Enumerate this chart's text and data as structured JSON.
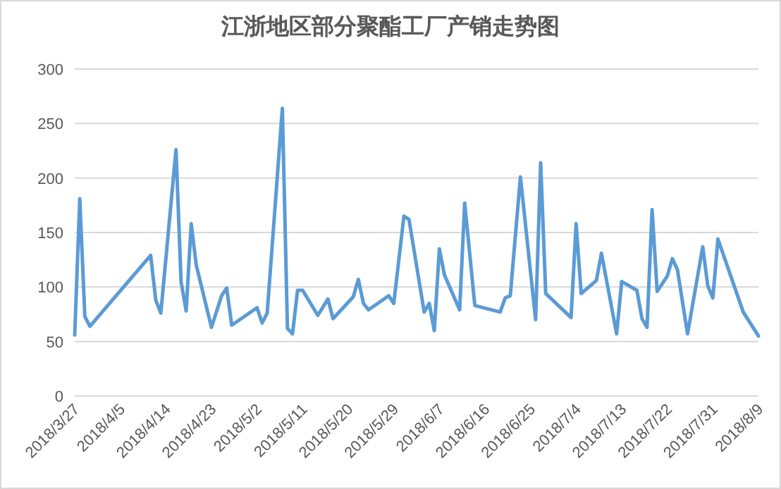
{
  "chart_data": {
    "type": "line",
    "title": "江浙地区部分聚酯工厂产销走势图",
    "x": [
      "2018-03-27",
      "2018-03-28",
      "2018-03-29",
      "2018-03-30",
      "2018-04-11",
      "2018-04-12",
      "2018-04-13",
      "2018-04-16",
      "2018-04-17",
      "2018-04-18",
      "2018-04-19",
      "2018-04-20",
      "2018-04-23",
      "2018-04-25",
      "2018-04-26",
      "2018-04-27",
      "2018-05-02",
      "2018-05-03",
      "2018-05-04",
      "2018-05-07",
      "2018-05-08",
      "2018-05-09",
      "2018-05-10",
      "2018-05-11",
      "2018-05-14",
      "2018-05-16",
      "2018-05-17",
      "2018-05-21",
      "2018-05-22",
      "2018-05-23",
      "2018-05-24",
      "2018-05-28",
      "2018-05-29",
      "2018-05-31",
      "2018-06-01",
      "2018-06-04",
      "2018-06-05",
      "2018-06-06",
      "2018-06-07",
      "2018-06-08",
      "2018-06-11",
      "2018-06-12",
      "2018-06-14",
      "2018-06-19",
      "2018-06-20",
      "2018-06-21",
      "2018-06-23",
      "2018-06-26",
      "2018-06-27",
      "2018-06-28",
      "2018-07-03",
      "2018-07-04",
      "2018-07-05",
      "2018-07-08",
      "2018-07-09",
      "2018-07-12",
      "2018-07-13",
      "2018-07-16",
      "2018-07-17",
      "2018-07-18",
      "2018-07-19",
      "2018-07-20",
      "2018-07-22",
      "2018-07-23",
      "2018-07-24",
      "2018-07-26",
      "2018-07-29",
      "2018-07-30",
      "2018-07-31",
      "2018-08-01",
      "2018-08-06",
      "2018-08-09"
    ],
    "series": [
      {
        "color": "#5b9bd5",
        "values": [
          56,
          181,
          73,
          64,
          129,
          88,
          76,
          226,
          105,
          78,
          158,
          120,
          63,
          92,
          99,
          65,
          81,
          67,
          76,
          264,
          62,
          57,
          97,
          97,
          74,
          89,
          71,
          91,
          107,
          85,
          79,
          92,
          85,
          165,
          162,
          77,
          85,
          60,
          135,
          111,
          79,
          177,
          83,
          77,
          90,
          92,
          201,
          70,
          214,
          94,
          72,
          158,
          94,
          106,
          131,
          57,
          105,
          97,
          71,
          63,
          171,
          96,
          110,
          126,
          116,
          57,
          137,
          101,
          90,
          144,
          77,
          55
        ]
      }
    ],
    "xlim": [
      "2018-03-27",
      "2018-08-09"
    ],
    "xticks": [
      {
        "value": "2018-03-27",
        "label": "2018/3/27"
      },
      {
        "value": "2018-04-05",
        "label": "2018/4/5"
      },
      {
        "value": "2018-04-14",
        "label": "2018/4/14"
      },
      {
        "value": "2018-04-23",
        "label": "2018/4/23"
      },
      {
        "value": "2018-05-02",
        "label": "2018/5/2"
      },
      {
        "value": "2018-05-11",
        "label": "2018/5/11"
      },
      {
        "value": "2018-05-20",
        "label": "2018/5/20"
      },
      {
        "value": "2018-05-29",
        "label": "2018/5/29"
      },
      {
        "value": "2018-06-07",
        "label": "2018/6/7"
      },
      {
        "value": "2018-06-16",
        "label": "2018/6/16"
      },
      {
        "value": "2018-06-25",
        "label": "2018/6/25"
      },
      {
        "value": "2018-07-04",
        "label": "2018/7/4"
      },
      {
        "value": "2018-07-13",
        "label": "2018/7/13"
      },
      {
        "value": "2018-07-22",
        "label": "2018/7/22"
      },
      {
        "value": "2018-07-31",
        "label": "2018/7/31"
      },
      {
        "value": "2018-08-09",
        "label": "2018/8/9"
      }
    ],
    "ylim": [
      0,
      300
    ],
    "yticks": [
      0,
      50,
      100,
      150,
      200,
      250,
      300
    ],
    "grid": "y",
    "marker": "none",
    "line_style": "solid"
  }
}
